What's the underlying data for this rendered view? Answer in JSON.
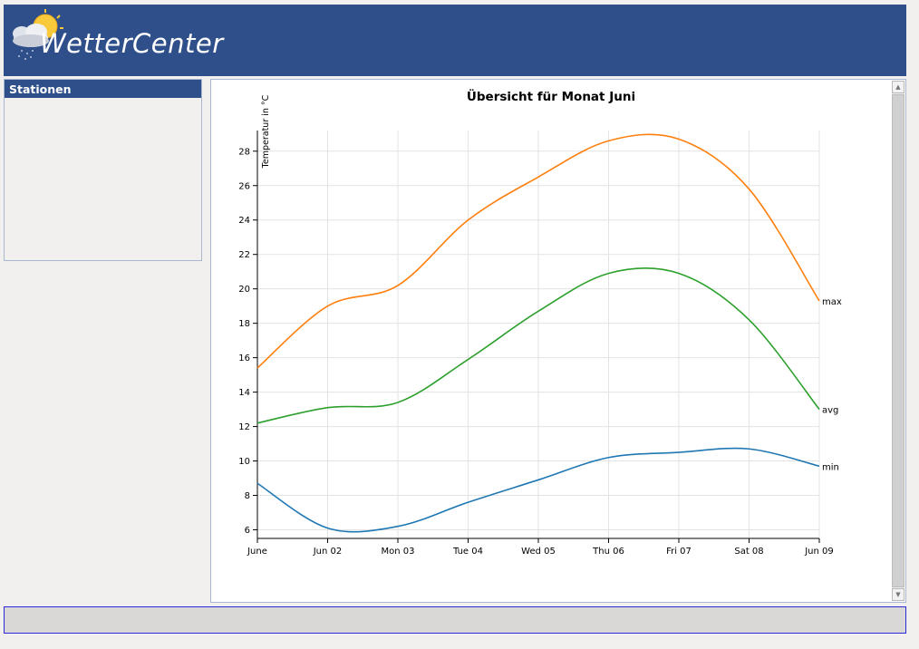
{
  "header": {
    "title": "WetterCenter",
    "logo_icon": "weather-cloud-sun-icon"
  },
  "sidebar": {
    "title": "Stationen"
  },
  "colors": {
    "header_bg": "#2e4f8a",
    "max": "#ff7f0e",
    "avg": "#2ca02c",
    "min": "#1f77b4"
  },
  "chart_data": {
    "type": "line",
    "title": "Übersicht für Monat Juni",
    "ylabel": "Temperatur in °C",
    "xlabel": "",
    "ylim": [
      5.5,
      29.2
    ],
    "y_ticks": [
      6,
      8,
      10,
      12,
      14,
      16,
      18,
      20,
      22,
      24,
      26,
      28
    ],
    "x_ticks": [
      "June",
      "Jun 02",
      "Mon 03",
      "Tue 04",
      "Wed 05",
      "Thu 06",
      "Fri 07",
      "Sat 08",
      "Jun 09"
    ],
    "grid": true,
    "series": [
      {
        "name": "max",
        "values": [
          15.4,
          19.0,
          20.2,
          24.0,
          26.5,
          28.6,
          28.7,
          25.8,
          19.3
        ]
      },
      {
        "name": "avg",
        "values": [
          12.2,
          13.1,
          13.4,
          15.9,
          18.7,
          20.9,
          20.9,
          18.2,
          13.0
        ]
      },
      {
        "name": "min",
        "values": [
          8.7,
          6.1,
          6.2,
          7.6,
          8.9,
          10.2,
          10.5,
          10.7,
          9.7
        ]
      }
    ]
  }
}
